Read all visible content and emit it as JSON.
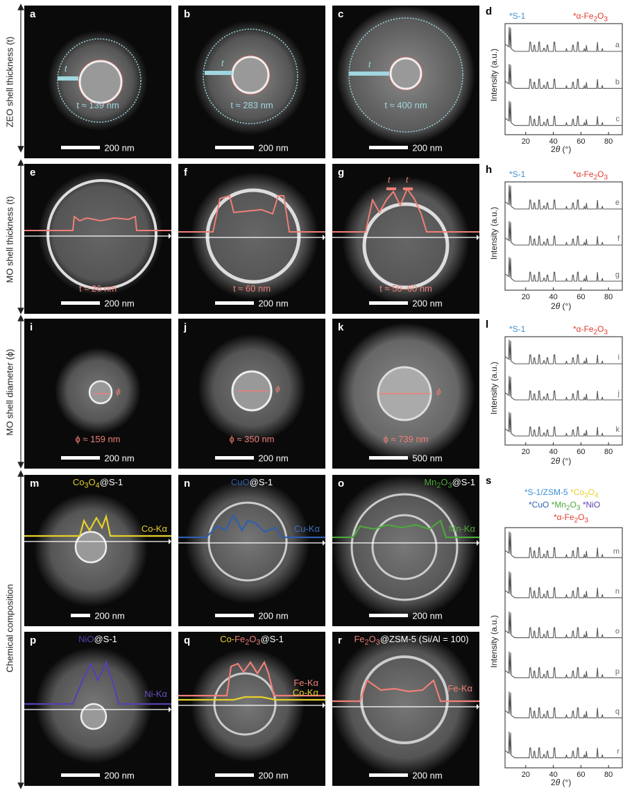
{
  "row_labels": {
    "row1": "ZEO shell thickness (t)",
    "row2": "MO shell thickness (t)",
    "row3": "MO shell diameter (ϕ)",
    "row4": "Chemical composition"
  },
  "panels": {
    "a": {
      "label": "a",
      "measure": "t ≈ 139 nm",
      "symbol": "t",
      "scale": "200 nm"
    },
    "b": {
      "label": "b",
      "measure": "t ≈ 283 nm",
      "symbol": "t",
      "scale": "200 nm"
    },
    "c": {
      "label": "c",
      "measure": "t ≈ 400 nm",
      "symbol": "t",
      "scale": "200 nm"
    },
    "e": {
      "label": "e",
      "measure": "t ≈ 26 nm",
      "scale": "200 nm"
    },
    "f": {
      "label": "f",
      "measure": "t ≈ 60 nm",
      "scale": "200 nm"
    },
    "g": {
      "label": "g",
      "measure": "t ≈ 50–60 nm",
      "symbol": "t",
      "scale": "200 nm"
    },
    "i": {
      "label": "i",
      "measure": "ϕ ≈ 159 nm",
      "symbol": "ϕ",
      "scale": "200 nm"
    },
    "j": {
      "label": "j",
      "measure": "ϕ ≈ 350 nm",
      "symbol": "ϕ",
      "scale": "200 nm"
    },
    "k": {
      "label": "k",
      "measure": "ϕ ≈ 739 nm",
      "symbol": "ϕ",
      "scale": "500 nm"
    },
    "m": {
      "label": "m",
      "title_a": "Co",
      "title_a_sub": "3",
      "title_b": "O",
      "title_b_sub": "4",
      "title_c": "@S-1",
      "line_label": "Co-Kα",
      "scale": "200 nm"
    },
    "n": {
      "label": "n",
      "title_a": "CuO",
      "title_c": "@S-1",
      "line_label": "Cu-Kα",
      "scale": "200 nm"
    },
    "o": {
      "label": "o",
      "title_a": "Mn",
      "title_a_sub": "2",
      "title_b": "O",
      "title_b_sub": "3",
      "title_c": "@S-1",
      "line_label": "Mn-Kα",
      "scale": "200 nm"
    },
    "p": {
      "label": "p",
      "title_a": "NiO",
      "title_c": "@S-1",
      "line_label": "Ni-Kα",
      "scale": "200 nm"
    },
    "q": {
      "label": "q",
      "title_a": "Co-",
      "title_b": "Fe",
      "title_b_sub": "2",
      "title_d": "O",
      "title_d_sub": "3",
      "title_c": "@S-1",
      "line_label": "Fe-Kα",
      "line_label2": "Co-Kα",
      "scale": "200 nm"
    },
    "r": {
      "label": "r",
      "title_a": "Fe",
      "title_a_sub": "2",
      "title_b": "O",
      "title_b_sub": "3",
      "title_c": "@ZSM-5 (Si/Al = 100)",
      "line_label": "Fe-Kα",
      "scale": "200 nm"
    }
  },
  "xrd": {
    "d": {
      "label": "d",
      "legend_left": "*S-1",
      "legend_right_a": "*α-Fe",
      "legend_right_sub": "2",
      "legend_right_b": "O",
      "legend_right_sub2": "3",
      "traces": [
        "a",
        "b",
        "c"
      ]
    },
    "h": {
      "label": "h",
      "legend_left": "*S-1",
      "legend_right_a": "*α-Fe",
      "legend_right_sub": "2",
      "legend_right_b": "O",
      "legend_right_sub2": "3",
      "traces": [
        "e",
        "f",
        "g"
      ]
    },
    "l": {
      "label": "l",
      "legend_left": "*S-1",
      "legend_right_a": "*α-Fe",
      "legend_right_sub": "2",
      "legend_right_b": "O",
      "legend_right_sub2": "3",
      "traces": [
        "i",
        "j",
        "k"
      ]
    },
    "s": {
      "label": "s",
      "legend_line1_a": "*S-1/ZSM-5",
      "legend_line1_b": "*Co",
      "legend_line1_b_sub": "3",
      "legend_line1_c": "O",
      "legend_line1_c_sub": "4",
      "legend_line2_a": "*CuO",
      "legend_line2_b": "*Mn",
      "legend_line2_b_sub": "2",
      "legend_line2_c": "O",
      "legend_line2_c_sub": "3",
      "legend_line2_d": "*NiO",
      "legend_line3_a": "*α-Fe",
      "legend_line3_sub": "2",
      "legend_line3_b": "O",
      "legend_line3_sub2": "3",
      "traces": [
        "m",
        "n",
        "o",
        "p",
        "q",
        "r"
      ]
    },
    "ylabel": "Intensity (a.u.)",
    "xlabel_a": "2",
    "xlabel_theta": "θ",
    "xlabel_b": " (°)",
    "xticks": [
      "20",
      "40",
      "60",
      "80"
    ],
    "xrange": [
      5,
      90
    ]
  },
  "colors": {
    "s1": "#3a8fd6",
    "fe2o3": "#e23a2e",
    "co": "#e6d229",
    "cu": "#2e5fae",
    "mn": "#4ca83c",
    "ni": "#5a3fb0",
    "fe_line": "#f07f77",
    "zeo": "#9fd6df"
  }
}
